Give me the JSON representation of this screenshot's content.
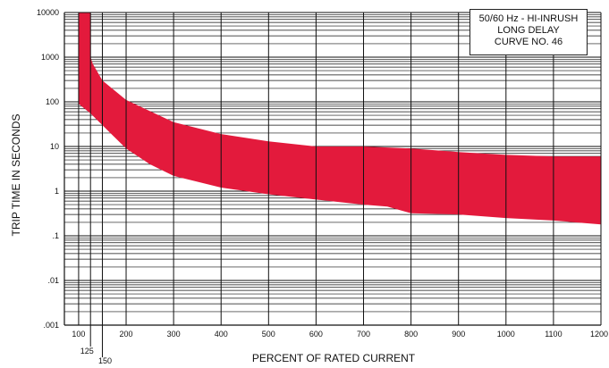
{
  "chart_data": {
    "type": "area",
    "title_lines": [
      "50/60 Hz - HI-INRUSH",
      "LONG DELAY",
      "CURVE NO. 46"
    ],
    "xlabel": "PERCENT OF RATED CURRENT",
    "ylabel": "TRIP TIME IN SECONDS",
    "xlim": [
      70,
      1200
    ],
    "ylim": [
      0.001,
      10000
    ],
    "y_scale": "log",
    "grid": true,
    "x_tick_labels": [
      "100",
      "200",
      "300",
      "400",
      "500",
      "600",
      "700",
      "800",
      "900",
      "1000",
      "1100",
      "1200"
    ],
    "x_extra_tick_labels": [
      "125",
      "150"
    ],
    "y_tick_labels": [
      ".001",
      ".01",
      ".1",
      "1",
      "10",
      "100",
      "1000",
      "10000"
    ],
    "band_color": "#e31a3c",
    "series": [
      {
        "role": "upper",
        "x": [
          100,
          125,
          125,
          130,
          150,
          200,
          300,
          400,
          500,
          600,
          700,
          800,
          900,
          1000,
          1100,
          1200
        ],
        "y": [
          10000,
          10000,
          1000,
          700,
          300,
          110,
          35,
          19,
          13,
          10,
          10,
          9,
          7.5,
          6.5,
          6,
          6
        ]
      },
      {
        "role": "lower",
        "x": [
          100,
          125,
          150,
          200,
          250,
          300,
          400,
          500,
          600,
          700,
          750,
          800,
          900,
          1000,
          1100,
          1200
        ],
        "y": [
          90,
          55,
          30,
          9,
          4,
          2.2,
          1.2,
          0.85,
          0.65,
          0.5,
          0.45,
          0.32,
          0.3,
          0.25,
          0.22,
          0.18
        ]
      }
    ]
  }
}
